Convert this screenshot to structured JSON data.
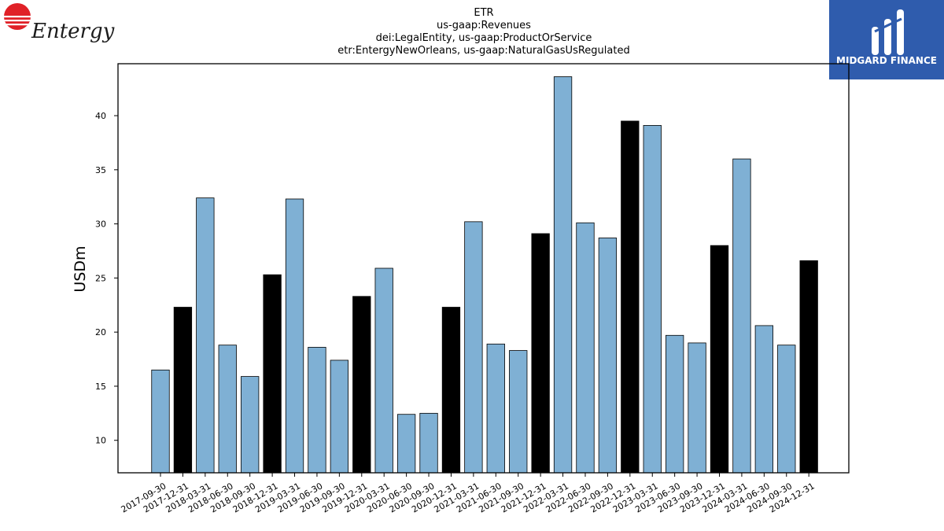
{
  "brand": {
    "company_logo_text": "Entergy",
    "publisher_logo_text": "MIDGARD FINANCE",
    "colors": {
      "logo_red": "#e02127",
      "publisher_bg": "#2f5cad"
    }
  },
  "chart_data": {
    "type": "bar",
    "title_lines": [
      "ETR",
      "us-gaap:Revenues",
      "dei:LegalEntity, us-gaap:ProductOrService",
      "etr:EntergyNewOrleans, us-gaap:NaturalGasUsRegulated"
    ],
    "xlabel": "",
    "ylabel": "USDm",
    "ylim": [
      7,
      44.8
    ],
    "yticks": [
      10,
      15,
      20,
      25,
      30,
      35,
      40
    ],
    "grid": false,
    "colors": {
      "quarter": "#7fb0d4",
      "year_end": "#000000",
      "edge": "#000000"
    },
    "categories": [
      "2017-09-30",
      "2017-12-31",
      "2018-03-31",
      "2018-06-30",
      "2018-09-30",
      "2018-12-31",
      "2019-03-31",
      "2019-06-30",
      "2019-09-30",
      "2019-12-31",
      "2020-03-31",
      "2020-06-30",
      "2020-09-30",
      "2020-12-31",
      "2021-03-31",
      "2021-06-30",
      "2021-09-30",
      "2021-12-31",
      "2022-03-31",
      "2022-06-30",
      "2022-09-30",
      "2022-12-31",
      "2023-03-31",
      "2023-06-30",
      "2023-09-30",
      "2023-12-31",
      "2024-03-31",
      "2024-06-30",
      "2024-09-30",
      "2024-12-31"
    ],
    "values": [
      16.5,
      22.3,
      32.4,
      18.8,
      15.9,
      25.3,
      32.3,
      18.6,
      17.4,
      23.3,
      25.9,
      12.4,
      12.5,
      22.3,
      30.2,
      18.9,
      18.3,
      29.1,
      43.6,
      30.1,
      28.7,
      39.5,
      39.1,
      19.7,
      19.0,
      28.0,
      36.0,
      20.6,
      18.8,
      26.6
    ]
  }
}
